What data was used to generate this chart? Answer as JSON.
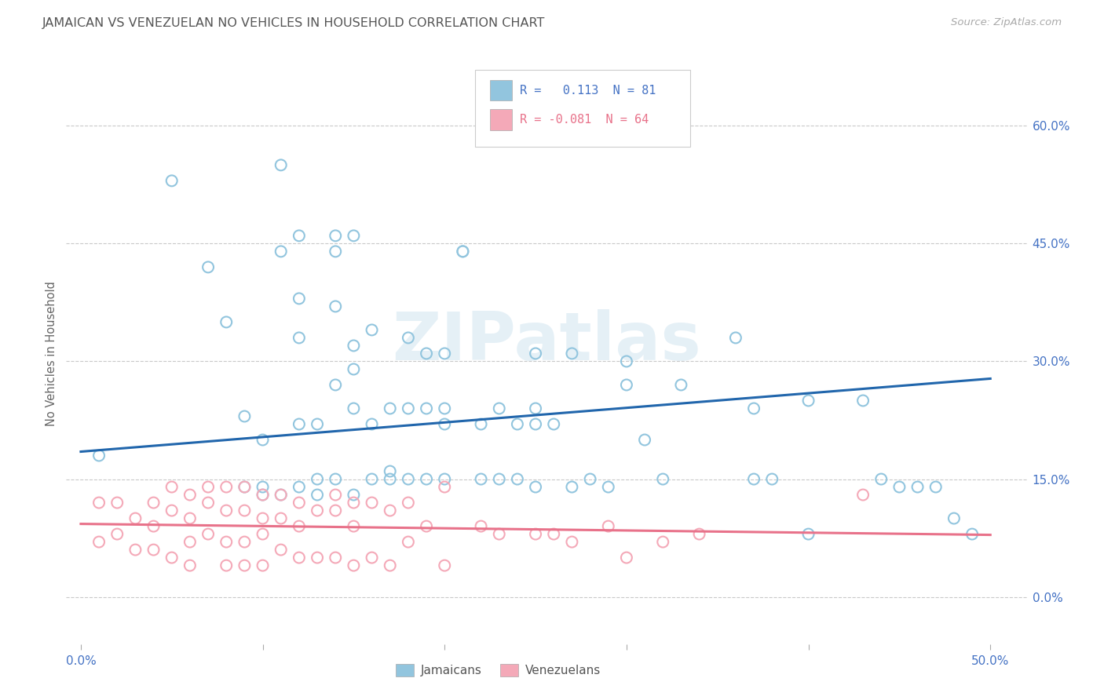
{
  "title": "JAMAICAN VS VENEZUELAN NO VEHICLES IN HOUSEHOLD CORRELATION CHART",
  "source": "Source: ZipAtlas.com",
  "ylabel": "No Vehicles in Household",
  "xlabel_jamaicans": "Jamaicans",
  "xlabel_venezuelans": "Venezuelans",
  "watermark": "ZIPatlas",
  "xlim": [
    -0.008,
    0.52
  ],
  "ylim": [
    -0.06,
    0.68
  ],
  "ytick_values": [
    0.0,
    0.15,
    0.3,
    0.45,
    0.6
  ],
  "xtick_values": [
    0.0,
    0.1,
    0.2,
    0.3,
    0.4,
    0.5
  ],
  "xtick_show_labels": [
    true,
    false,
    false,
    false,
    false,
    true
  ],
  "blue_R": 0.113,
  "blue_N": 81,
  "pink_R": -0.081,
  "pink_N": 64,
  "blue_color": "#92c5de",
  "pink_color": "#f4a9b8",
  "blue_line_color": "#2166ac",
  "pink_line_color": "#e8728a",
  "title_color": "#555555",
  "axis_color": "#4472C4",
  "grid_color": "#bbbbbb",
  "background_color": "#ffffff",
  "blue_line_x": [
    0.0,
    0.5
  ],
  "blue_line_y": [
    0.185,
    0.278
  ],
  "pink_line_x": [
    0.0,
    0.5
  ],
  "pink_line_y": [
    0.093,
    0.079
  ],
  "blue_x": [
    0.01,
    0.05,
    0.07,
    0.08,
    0.09,
    0.09,
    0.1,
    0.1,
    0.1,
    0.11,
    0.11,
    0.11,
    0.12,
    0.12,
    0.12,
    0.12,
    0.12,
    0.13,
    0.13,
    0.13,
    0.14,
    0.14,
    0.14,
    0.14,
    0.14,
    0.15,
    0.15,
    0.15,
    0.15,
    0.15,
    0.16,
    0.16,
    0.16,
    0.17,
    0.17,
    0.17,
    0.18,
    0.18,
    0.18,
    0.19,
    0.19,
    0.19,
    0.2,
    0.2,
    0.2,
    0.2,
    0.21,
    0.21,
    0.22,
    0.22,
    0.23,
    0.23,
    0.24,
    0.24,
    0.25,
    0.25,
    0.25,
    0.25,
    0.26,
    0.27,
    0.27,
    0.28,
    0.29,
    0.3,
    0.3,
    0.31,
    0.32,
    0.33,
    0.36,
    0.37,
    0.37,
    0.38,
    0.4,
    0.4,
    0.43,
    0.44,
    0.45,
    0.46,
    0.47,
    0.48,
    0.49
  ],
  "blue_y": [
    0.18,
    0.53,
    0.42,
    0.35,
    0.23,
    0.14,
    0.2,
    0.14,
    0.13,
    0.55,
    0.44,
    0.13,
    0.46,
    0.38,
    0.33,
    0.22,
    0.14,
    0.22,
    0.15,
    0.13,
    0.46,
    0.44,
    0.37,
    0.27,
    0.15,
    0.46,
    0.32,
    0.29,
    0.24,
    0.13,
    0.34,
    0.22,
    0.15,
    0.24,
    0.16,
    0.15,
    0.33,
    0.24,
    0.15,
    0.31,
    0.24,
    0.15,
    0.31,
    0.24,
    0.22,
    0.15,
    0.44,
    0.44,
    0.22,
    0.15,
    0.24,
    0.15,
    0.22,
    0.15,
    0.31,
    0.24,
    0.22,
    0.14,
    0.22,
    0.31,
    0.14,
    0.15,
    0.14,
    0.3,
    0.27,
    0.2,
    0.15,
    0.27,
    0.33,
    0.24,
    0.15,
    0.15,
    0.25,
    0.08,
    0.25,
    0.15,
    0.14,
    0.14,
    0.14,
    0.1,
    0.08
  ],
  "pink_x": [
    0.01,
    0.01,
    0.02,
    0.02,
    0.03,
    0.03,
    0.04,
    0.04,
    0.04,
    0.05,
    0.05,
    0.05,
    0.06,
    0.06,
    0.06,
    0.06,
    0.07,
    0.07,
    0.07,
    0.08,
    0.08,
    0.08,
    0.08,
    0.09,
    0.09,
    0.09,
    0.09,
    0.1,
    0.1,
    0.1,
    0.1,
    0.11,
    0.11,
    0.11,
    0.12,
    0.12,
    0.12,
    0.13,
    0.13,
    0.14,
    0.14,
    0.14,
    0.15,
    0.15,
    0.15,
    0.16,
    0.16,
    0.17,
    0.17,
    0.18,
    0.18,
    0.19,
    0.2,
    0.2,
    0.22,
    0.23,
    0.25,
    0.26,
    0.27,
    0.29,
    0.3,
    0.32,
    0.34,
    0.43
  ],
  "pink_y": [
    0.12,
    0.07,
    0.12,
    0.08,
    0.1,
    0.06,
    0.12,
    0.09,
    0.06,
    0.14,
    0.11,
    0.05,
    0.13,
    0.1,
    0.07,
    0.04,
    0.14,
    0.12,
    0.08,
    0.14,
    0.11,
    0.07,
    0.04,
    0.14,
    0.11,
    0.07,
    0.04,
    0.13,
    0.1,
    0.08,
    0.04,
    0.13,
    0.1,
    0.06,
    0.12,
    0.09,
    0.05,
    0.11,
    0.05,
    0.13,
    0.11,
    0.05,
    0.12,
    0.09,
    0.04,
    0.12,
    0.05,
    0.11,
    0.04,
    0.12,
    0.07,
    0.09,
    0.14,
    0.04,
    0.09,
    0.08,
    0.08,
    0.08,
    0.07,
    0.09,
    0.05,
    0.07,
    0.08,
    0.13
  ]
}
